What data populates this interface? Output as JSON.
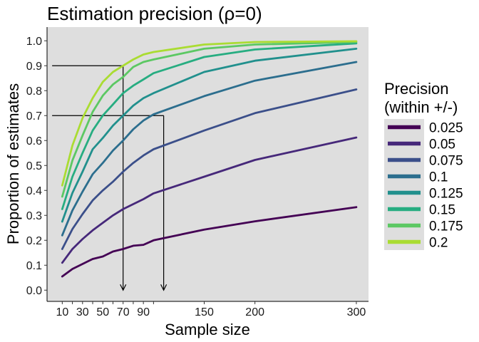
{
  "chart_data": {
    "type": "line",
    "title": "Estimation precision (ρ=0)",
    "xlabel": "Sample size",
    "ylabel": "Proportion of estimates",
    "xlim": [
      -5,
      312
    ],
    "ylim": [
      -0.045,
      1.055
    ],
    "x_ticks": [
      10,
      20,
      30,
      40,
      50,
      60,
      70,
      80,
      90,
      100,
      150,
      200,
      300
    ],
    "x_tick_labels": [
      "10",
      "",
      "30",
      "",
      "50",
      "",
      "70",
      "",
      "90",
      "",
      "150",
      "200",
      "300"
    ],
    "y_ticks": [
      0.0,
      0.1,
      0.2,
      0.3,
      0.4,
      0.5,
      0.6,
      0.7,
      0.8,
      0.9,
      1.0
    ],
    "y_tick_labels": [
      "0.0",
      "0.1",
      "0.2",
      "0.3",
      "0.4",
      "0.5",
      "0.6",
      "0.7",
      "0.8",
      "0.9",
      "1.0"
    ],
    "grid": false,
    "panel_background": "#dedede",
    "legend": {
      "title_lines": [
        "Precision",
        "(within +/-)"
      ],
      "position": "right"
    },
    "x": [
      10,
      20,
      30,
      40,
      50,
      60,
      70,
      80,
      90,
      100,
      150,
      200,
      300
    ],
    "series": [
      {
        "name": "0.025",
        "color": "#440154",
        "values": [
          0.055,
          0.085,
          0.105,
          0.125,
          0.135,
          0.155,
          0.165,
          0.178,
          0.182,
          0.2,
          0.243,
          0.276,
          0.333
        ]
      },
      {
        "name": "0.05",
        "color": "#46287a",
        "values": [
          0.11,
          0.165,
          0.205,
          0.24,
          0.27,
          0.3,
          0.325,
          0.345,
          0.365,
          0.388,
          0.455,
          0.522,
          0.612
        ]
      },
      {
        "name": "0.075",
        "color": "#3b4f8a",
        "values": [
          0.165,
          0.245,
          0.305,
          0.36,
          0.4,
          0.435,
          0.475,
          0.51,
          0.54,
          0.565,
          0.64,
          0.71,
          0.805
        ]
      },
      {
        "name": "0.1",
        "color": "#2c6e8e",
        "values": [
          0.22,
          0.32,
          0.395,
          0.465,
          0.51,
          0.56,
          0.6,
          0.645,
          0.68,
          0.705,
          0.778,
          0.84,
          0.915
        ]
      },
      {
        "name": "0.125",
        "color": "#21908d",
        "values": [
          0.275,
          0.39,
          0.475,
          0.565,
          0.61,
          0.66,
          0.7,
          0.74,
          0.77,
          0.79,
          0.875,
          0.92,
          0.968
        ]
      },
      {
        "name": "0.15",
        "color": "#27ad81",
        "values": [
          0.325,
          0.455,
          0.55,
          0.64,
          0.7,
          0.745,
          0.79,
          0.82,
          0.845,
          0.87,
          0.935,
          0.965,
          0.99
        ]
      },
      {
        "name": "0.175",
        "color": "#5cc863",
        "values": [
          0.375,
          0.52,
          0.62,
          0.715,
          0.78,
          0.825,
          0.855,
          0.895,
          0.915,
          0.925,
          0.968,
          0.985,
          0.995
        ]
      },
      {
        "name": "0.2",
        "color": "#aadc32",
        "values": [
          0.42,
          0.58,
          0.69,
          0.77,
          0.835,
          0.875,
          0.9,
          0.925,
          0.945,
          0.955,
          0.985,
          0.995,
          0.998
        ]
      }
    ],
    "annotations": [
      {
        "type": "guide",
        "y": 0.9,
        "x": 70
      },
      {
        "type": "guide",
        "y": 0.7,
        "x": 110
      }
    ]
  }
}
